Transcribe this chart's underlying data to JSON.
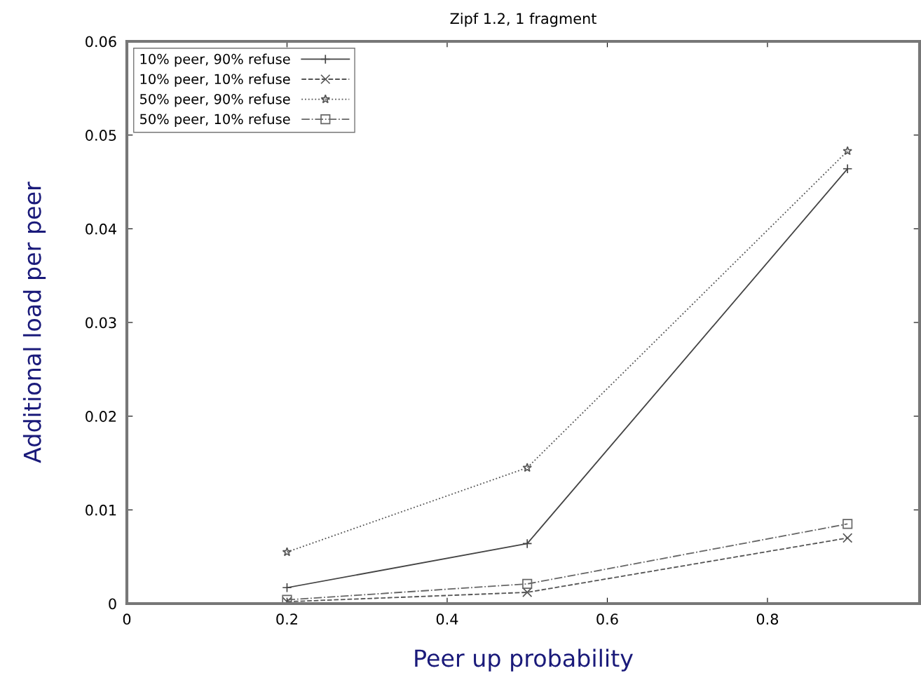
{
  "chart_data": {
    "type": "line",
    "title": "Zipf 1.2, 1 fragment",
    "xlabel": "Peer up probability",
    "ylabel": "Additional load per peer",
    "x": [
      0.2,
      0.5,
      0.9
    ],
    "series": [
      {
        "name": "10% peer, 90% refuse",
        "color": "#444444",
        "values": [
          0.0017,
          0.0064,
          0.0464
        ],
        "marker": "plus",
        "line_style": "solid"
      },
      {
        "name": "10% peer, 10% refuse",
        "color": "#555555",
        "values": [
          0.0002,
          0.0012,
          0.007
        ],
        "marker": "x",
        "line_style": "dashed"
      },
      {
        "name": "50% peer, 90% refuse",
        "color": "#555555",
        "values": [
          0.0055,
          0.0145,
          0.0483
        ],
        "marker": "star",
        "line_style": "dotted"
      },
      {
        "name": "50% peer, 10% refuse",
        "color": "#666666",
        "values": [
          0.0004,
          0.0021,
          0.0085
        ],
        "marker": "square",
        "line_style": "dashdot"
      }
    ],
    "xlim": [
      0,
      0.99
    ],
    "ylim": [
      0,
      0.06
    ],
    "xticks": [
      0,
      0.2,
      0.4,
      0.6,
      0.8
    ],
    "yticks": [
      0,
      0.01,
      0.02,
      0.03,
      0.04,
      0.05,
      0.06
    ],
    "legend": "top left",
    "grid": false
  }
}
